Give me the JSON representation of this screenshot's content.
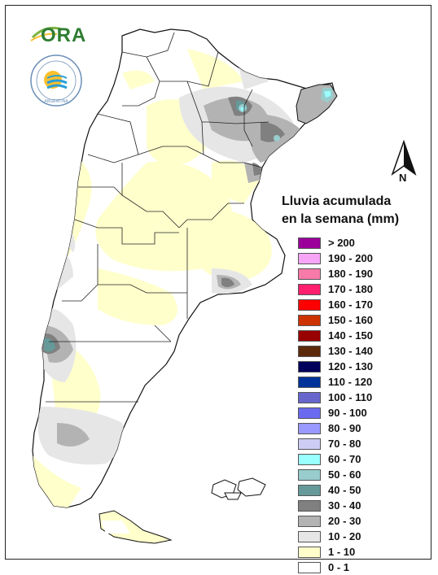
{
  "logos": {
    "ora_text": "ORA",
    "seal_text": "ARGENTINA"
  },
  "compass": {
    "label": "N"
  },
  "legend": {
    "title_line1": "Lluvia acumulada",
    "title_line2": "en la semana (mm)",
    "items": [
      {
        "label": "> 200",
        "color": "#9b009b"
      },
      {
        "label": "190 - 200",
        "color": "#f7a6f7"
      },
      {
        "label": "180 - 190",
        "color": "#f77aa8"
      },
      {
        "label": "170 - 180",
        "color": "#ff1f6e"
      },
      {
        "label": "160 - 170",
        "color": "#ff0000"
      },
      {
        "label": "150 - 160",
        "color": "#cc3300"
      },
      {
        "label": "140 - 150",
        "color": "#990000"
      },
      {
        "label": "130 - 140",
        "color": "#5c2a0a"
      },
      {
        "label": "120 - 130",
        "color": "#00005c"
      },
      {
        "label": "110 - 120",
        "color": "#00339a"
      },
      {
        "label": "100 - 110",
        "color": "#6666cc"
      },
      {
        "label": "90 - 100",
        "color": "#6a6af0"
      },
      {
        "label": "80 - 90",
        "color": "#9999ff"
      },
      {
        "label": "70 - 80",
        "color": "#ccccf5"
      },
      {
        "label": "60 - 70",
        "color": "#99ffff"
      },
      {
        "label": "50 - 60",
        "color": "#99cccc"
      },
      {
        "label": "40 - 50",
        "color": "#669999"
      },
      {
        "label": "30 - 40",
        "color": "#808080"
      },
      {
        "label": "20 - 30",
        "color": "#b3b3b3"
      },
      {
        "label": "10 - 20",
        "color": "#e6e6e6"
      },
      {
        "label": "1 - 10",
        "color": "#ffffcc"
      },
      {
        "label": "0 - 1",
        "color": "#ffffff"
      }
    ]
  }
}
